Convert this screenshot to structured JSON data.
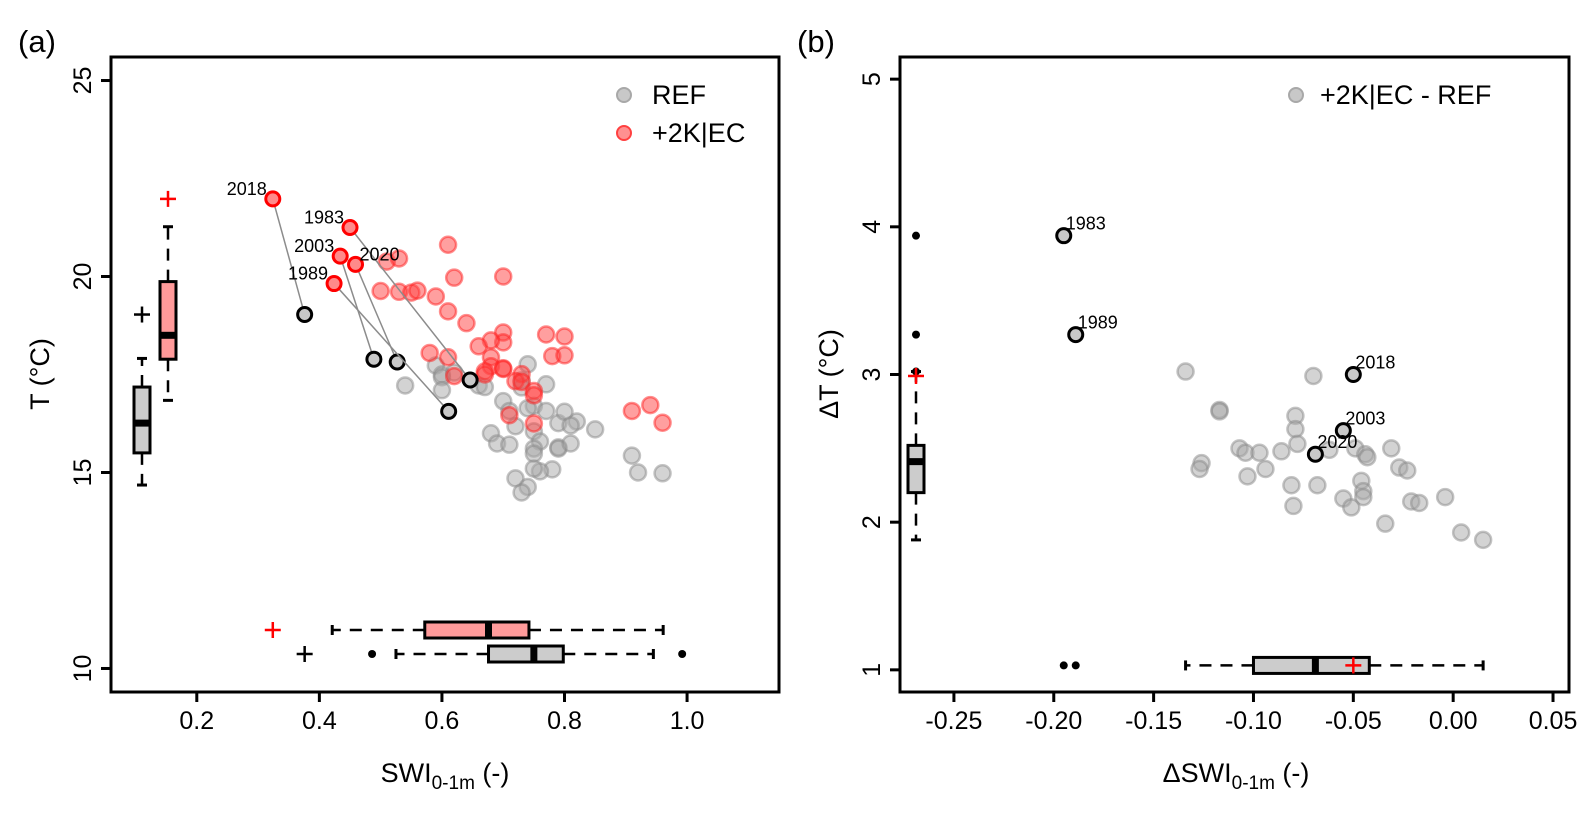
{
  "chart_data": [
    {
      "panel_label": "(a)",
      "type": "scatter",
      "xlabel": "SWI",
      "xlabel_sub": "0-1m",
      "xlabel_suffix": " (-)",
      "ylabel": "T (°C)",
      "xlim": [
        0.06,
        1.15
      ],
      "ylim": [
        9.4,
        25.6
      ],
      "xticks": [
        0.2,
        0.4,
        0.6,
        0.8,
        1.0
      ],
      "xtick_labels": [
        "0.2",
        "0.4",
        "0.6",
        "0.8",
        "1.0"
      ],
      "yticks": [
        10,
        15,
        20,
        25
      ],
      "ytick_labels": [
        "10",
        "15",
        "20",
        "25"
      ],
      "grid": false,
      "legend": {
        "position": "top-right",
        "entries": [
          {
            "label": "REF",
            "color": "#bdbdbd"
          },
          {
            "label": "+2K|EC",
            "color": "#ff7070"
          }
        ]
      },
      "colors": {
        "ref": "#a8a8a8",
        "ec": "#ff4040",
        "ref_box": "#cccccc",
        "ec_box": "#ff9a9a",
        "marker_ec": "#ff0000",
        "marker_ref": "#000000"
      },
      "series": [
        {
          "name": "REF",
          "points": [
            [
              0.59,
              17.73
            ],
            [
              0.6,
              17.5
            ],
            [
              0.6,
              17.43
            ],
            [
              0.54,
              17.22
            ],
            [
              0.6,
              17.1
            ],
            [
              0.66,
              17.22
            ],
            [
              0.67,
              17.18
            ],
            [
              0.74,
              17.76
            ],
            [
              0.73,
              17.35
            ],
            [
              0.77,
              17.25
            ],
            [
              0.73,
              17.17
            ],
            [
              0.7,
              16.82
            ],
            [
              0.75,
              16.7
            ],
            [
              0.71,
              16.57
            ],
            [
              0.77,
              16.57
            ],
            [
              0.68,
              16.0
            ],
            [
              0.72,
              16.18
            ],
            [
              0.75,
              16.05
            ],
            [
              0.74,
              16.64
            ],
            [
              0.79,
              16.26
            ],
            [
              0.76,
              15.79
            ],
            [
              0.75,
              15.61
            ],
            [
              0.75,
              15.48
            ],
            [
              0.79,
              15.64
            ],
            [
              0.79,
              15.61
            ],
            [
              0.81,
              15.74
            ],
            [
              0.69,
              15.74
            ],
            [
              0.78,
              15.08
            ],
            [
              0.76,
              15.03
            ],
            [
              0.75,
              15.1
            ],
            [
              0.72,
              14.85
            ],
            [
              0.74,
              14.63
            ],
            [
              0.73,
              14.49
            ],
            [
              0.91,
              15.43
            ],
            [
              0.92,
              15.0
            ],
            [
              0.96,
              14.98
            ],
            [
              0.82,
              16.3
            ],
            [
              0.71,
              15.71
            ],
            [
              0.62,
              17.55
            ],
            [
              0.8,
              16.55
            ],
            [
              0.81,
              16.2
            ],
            [
              0.85,
              16.1
            ]
          ]
        },
        {
          "name": "+2K|EC",
          "points": [
            [
              0.61,
              20.81
            ],
            [
              0.51,
              20.38
            ],
            [
              0.53,
              20.46
            ],
            [
              0.62,
              19.97
            ],
            [
              0.7,
              20.0
            ],
            [
              0.5,
              19.63
            ],
            [
              0.53,
              19.61
            ],
            [
              0.55,
              19.59
            ],
            [
              0.56,
              19.64
            ],
            [
              0.59,
              19.49
            ],
            [
              0.61,
              19.11
            ],
            [
              0.7,
              18.57
            ],
            [
              0.61,
              17.94
            ],
            [
              0.68,
              17.94
            ],
            [
              0.68,
              17.71
            ],
            [
              0.67,
              17.58
            ],
            [
              0.7,
              17.66
            ],
            [
              0.7,
              17.64
            ],
            [
              0.73,
              17.51
            ],
            [
              0.72,
              17.33
            ],
            [
              0.77,
              18.52
            ],
            [
              0.8,
              18.47
            ],
            [
              0.78,
              17.97
            ],
            [
              0.8,
              17.99
            ],
            [
              0.58,
              18.05
            ],
            [
              0.62,
              17.46
            ],
            [
              0.67,
              17.5
            ],
            [
              0.73,
              17.31
            ],
            [
              0.75,
              17.08
            ],
            [
              0.75,
              16.97
            ],
            [
              0.71,
              16.46
            ],
            [
              0.75,
              16.25
            ],
            [
              0.91,
              16.57
            ],
            [
              0.94,
              16.72
            ],
            [
              0.96,
              16.27
            ],
            [
              0.64,
              18.81
            ],
            [
              0.7,
              18.32
            ],
            [
              0.68,
              18.37
            ],
            [
              0.66,
              18.22
            ]
          ]
        }
      ],
      "highlighted_years": [
        {
          "year": "2018",
          "ref": [
            0.376,
            19.03
          ],
          "ec": [
            0.324,
            21.98
          ]
        },
        {
          "year": "1983",
          "ref": [
            0.646,
            17.36
          ],
          "ec": [
            0.45,
            21.25
          ]
        },
        {
          "year": "2003",
          "ref": [
            0.489,
            17.89
          ],
          "ec": [
            0.434,
            20.52
          ]
        },
        {
          "year": "2020",
          "ref": [
            0.527,
            17.82
          ],
          "ec": [
            0.459,
            20.31
          ]
        },
        {
          "year": "1989",
          "ref": [
            0.611,
            16.56
          ],
          "ec": [
            0.424,
            19.82
          ]
        }
      ],
      "boxplots_y": [
        {
          "name": "REF",
          "whisker_low": 14.68,
          "q1": 15.5,
          "median": 16.26,
          "q3": 17.18,
          "whisker_high": 17.91,
          "outliers": [],
          "marker": 19.03
        },
        {
          "name": "+2K|EC",
          "whisker_low": 16.84,
          "q1": 17.89,
          "median": 18.5,
          "q3": 19.87,
          "whisker_high": 21.27,
          "outliers": [],
          "marker": 21.98
        }
      ],
      "boxplots_x": [
        {
          "name": "REF",
          "whisker_low": 0.525,
          "q1": 0.676,
          "median": 0.75,
          "q3": 0.798,
          "whisker_high": 0.945,
          "outliers": [
            0.486,
            0.992
          ],
          "marker": 0.376
        },
        {
          "name": "+2K|EC",
          "whisker_low": 0.421,
          "q1": 0.572,
          "median": 0.676,
          "q3": 0.742,
          "whisker_high": 0.961,
          "outliers": [],
          "marker": 0.324
        }
      ]
    },
    {
      "panel_label": "(b)",
      "type": "scatter",
      "xlabel": "ΔSWI",
      "xlabel_sub": "0-1m",
      "xlabel_suffix": " (-)",
      "ylabel": "ΔT (°C)",
      "xlim": [
        -0.277,
        0.058
      ],
      "ylim": [
        0.85,
        5.15
      ],
      "xticks": [
        -0.25,
        -0.2,
        -0.15,
        -0.1,
        -0.05,
        0.0,
        0.05
      ],
      "xtick_labels": [
        "-0.25",
        "-0.20",
        "-0.15",
        "-0.10",
        "-0.05",
        "0.00",
        "0.05"
      ],
      "yticks": [
        1,
        2,
        3,
        4,
        5
      ],
      "ytick_labels": [
        "1",
        "2",
        "3",
        "4",
        "5"
      ],
      "grid": false,
      "legend": {
        "position": "top-right",
        "entries": [
          {
            "label": "+2K|EC - REF",
            "color": "#bdbdbd"
          }
        ]
      },
      "colors": {
        "point": "#a8a8a8",
        "box": "#cccccc",
        "marker": "#ff0000"
      },
      "series": [
        {
          "name": "+2K|EC - REF",
          "points": [
            [
              -0.134,
              3.02
            ],
            [
              -0.07,
              2.99
            ],
            [
              -0.117,
              2.76
            ],
            [
              -0.117,
              2.75
            ],
            [
              -0.079,
              2.72
            ],
            [
              -0.079,
              2.63
            ],
            [
              -0.078,
              2.53
            ],
            [
              -0.107,
              2.5
            ],
            [
              -0.104,
              2.47
            ],
            [
              -0.097,
              2.47
            ],
            [
              -0.094,
              2.36
            ],
            [
              -0.086,
              2.48
            ],
            [
              -0.126,
              2.4
            ],
            [
              -0.127,
              2.36
            ],
            [
              -0.103,
              2.31
            ],
            [
              -0.081,
              2.25
            ],
            [
              -0.068,
              2.25
            ],
            [
              -0.049,
              2.5
            ],
            [
              -0.044,
              2.46
            ],
            [
              -0.043,
              2.44
            ],
            [
              -0.031,
              2.5
            ],
            [
              -0.027,
              2.37
            ],
            [
              -0.023,
              2.35
            ],
            [
              -0.046,
              2.28
            ],
            [
              -0.045,
              2.21
            ],
            [
              -0.045,
              2.17
            ],
            [
              -0.055,
              2.16
            ],
            [
              -0.051,
              2.1
            ],
            [
              -0.08,
              2.11
            ],
            [
              -0.021,
              2.14
            ],
            [
              -0.017,
              2.13
            ],
            [
              -0.004,
              2.17
            ],
            [
              -0.034,
              1.99
            ],
            [
              0.004,
              1.93
            ],
            [
              0.015,
              1.88
            ],
            [
              -0.062,
              2.49
            ]
          ]
        }
      ],
      "highlighted_years": [
        {
          "year": "1983",
          "point": [
            -0.195,
            3.94
          ]
        },
        {
          "year": "1989",
          "point": [
            -0.189,
            3.27
          ]
        },
        {
          "year": "2018",
          "point": [
            -0.05,
            3.0
          ]
        },
        {
          "year": "2003",
          "point": [
            -0.055,
            2.62
          ]
        },
        {
          "year": "2020",
          "point": [
            -0.069,
            2.46
          ]
        }
      ],
      "boxplot_y": {
        "whisker_low": 1.88,
        "q1": 2.2,
        "median": 2.41,
        "q3": 2.52,
        "whisker_high": 3.02,
        "outliers": [
          3.94,
          3.27,
          3.02
        ],
        "marker": 2.99
      },
      "boxplot_x": {
        "whisker_low": -0.134,
        "q1": -0.1,
        "median": -0.069,
        "q3": -0.042,
        "whisker_high": 0.015,
        "outliers": [
          -0.195,
          -0.189
        ],
        "marker": -0.05
      }
    }
  ]
}
